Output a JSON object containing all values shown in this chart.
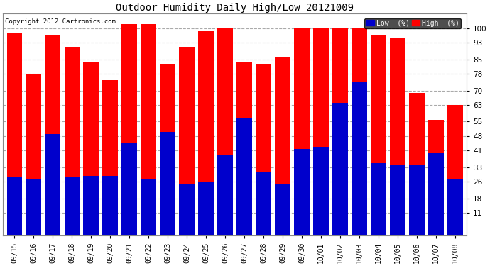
{
  "title": "Outdoor Humidity Daily High/Low 20121009",
  "copyright": "Copyright 2012 Cartronics.com",
  "categories": [
    "09/15",
    "09/16",
    "09/17",
    "09/18",
    "09/19",
    "09/20",
    "09/21",
    "09/22",
    "09/23",
    "09/24",
    "09/25",
    "09/26",
    "09/27",
    "09/28",
    "09/29",
    "09/30",
    "10/01",
    "10/02",
    "10/03",
    "10/04",
    "10/05",
    "10/06",
    "10/07",
    "10/08"
  ],
  "high": [
    98,
    78,
    97,
    91,
    84,
    75,
    102,
    102,
    83,
    91,
    99,
    100,
    84,
    83,
    86,
    100,
    100,
    100,
    100,
    97,
    95,
    69,
    56,
    63
  ],
  "low": [
    28,
    27,
    49,
    28,
    29,
    29,
    45,
    27,
    50,
    25,
    26,
    39,
    57,
    31,
    25,
    42,
    43,
    64,
    74,
    35,
    34,
    34,
    40,
    27
  ],
  "high_color": "#ff0000",
  "low_color": "#0000cc",
  "background_color": "#ffffff",
  "grid_color": "#aaaaaa",
  "yticks": [
    11,
    18,
    26,
    33,
    41,
    48,
    55,
    63,
    70,
    78,
    85,
    93,
    100
  ],
  "ylim": [
    0,
    107
  ],
  "bar_width": 0.8
}
